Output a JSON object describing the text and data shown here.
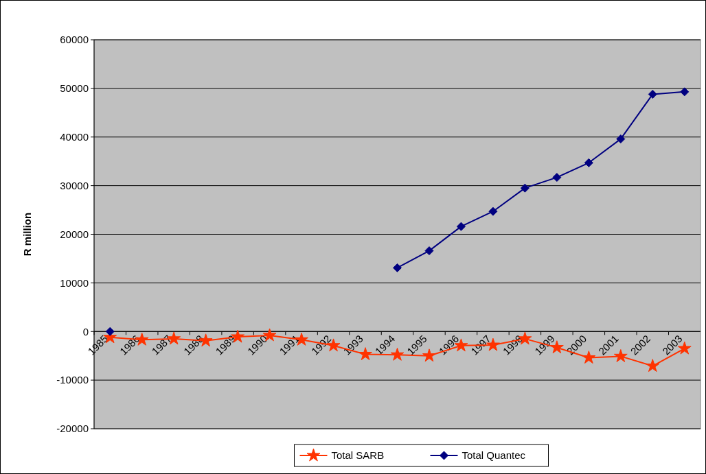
{
  "chart_data": {
    "type": "line",
    "ylabel": "R million",
    "categories": [
      "1985",
      "1986",
      "1987",
      "1988",
      "1989",
      "1990",
      "1991",
      "1992",
      "1993",
      "1994",
      "1995",
      "1996",
      "1997",
      "1998",
      "1999",
      "2000",
      "2001",
      "2002",
      "2003"
    ],
    "series": [
      {
        "name": "Total SARB",
        "color": "#ff3300",
        "marker": "star",
        "values": [
          -1200,
          -1700,
          -1500,
          -1900,
          -1100,
          -800,
          -1700,
          -2900,
          -4700,
          -4800,
          -5000,
          -2900,
          -2800,
          -1500,
          -3300,
          -5400,
          -5100,
          -7100,
          -3500
        ]
      },
      {
        "name": "Total Quantec",
        "color": "#000080",
        "marker": "diamond",
        "values": [
          0,
          null,
          null,
          null,
          null,
          null,
          null,
          null,
          null,
          13100,
          16600,
          21600,
          24700,
          29500,
          31700,
          34700,
          39600,
          48800,
          49300
        ]
      }
    ],
    "ylim": [
      -20000,
      60000
    ],
    "yticks": [
      -20000,
      -10000,
      0,
      10000,
      20000,
      30000,
      40000,
      50000,
      60000
    ],
    "grid": "y",
    "legend": "bottom"
  }
}
